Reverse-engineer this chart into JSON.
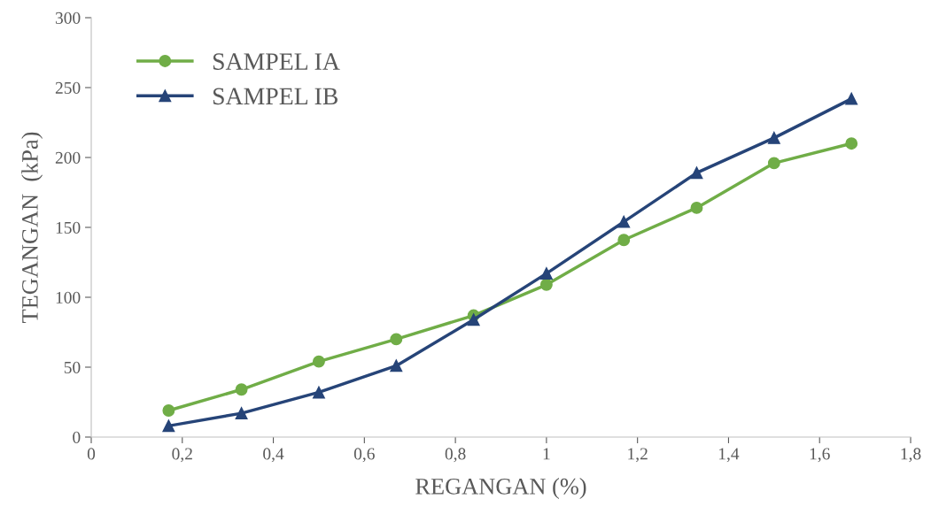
{
  "chart_data": {
    "type": "line",
    "xlabel": "REGANGAN (%)",
    "ylabel": "TEGANGAN  (kPa)",
    "x": [
      0.17,
      0.33,
      0.5,
      0.67,
      0.84,
      1.0,
      1.17,
      1.33,
      1.5,
      1.67
    ],
    "series": [
      {
        "name": "SAMPEL IA",
        "color": "#70ad47",
        "marker": "circle",
        "values": [
          19,
          34,
          54,
          70,
          87,
          109,
          141,
          164,
          196,
          210
        ]
      },
      {
        "name": "SAMPEL IB",
        "color": "#264478",
        "marker": "triangle",
        "values": [
          8,
          17,
          32,
          51,
          84,
          117,
          154,
          189,
          214,
          242
        ]
      }
    ],
    "xlim": [
      0,
      1.8
    ],
    "xticks": [
      0,
      {
        "value": 0.2,
        "label": "0,2"
      },
      {
        "value": 0.4,
        "label": "0,4"
      },
      {
        "value": 0.6,
        "label": "0,6"
      },
      {
        "value": 0.8,
        "label": "0,8"
      },
      1,
      {
        "value": 1.2,
        "label": "1,2"
      },
      {
        "value": 1.4,
        "label": "1,4"
      },
      {
        "value": 1.6,
        "label": "1,6"
      },
      {
        "value": 1.8,
        "label": "1,8"
      }
    ],
    "ylim": [
      0,
      300
    ],
    "yticks": [
      0,
      50,
      100,
      150,
      200,
      250,
      300
    ],
    "grid": false,
    "legend": "top left",
    "line_style": "solid"
  }
}
